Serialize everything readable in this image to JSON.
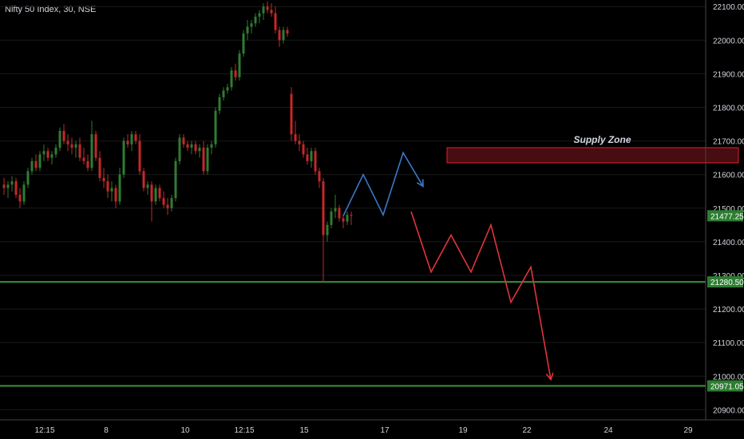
{
  "chart_data": {
    "type": "candlestick",
    "symbol_line": "Nifty 50 Index, 30, NSE",
    "annotation": "Supply Zone",
    "y_ticks": [
      22100,
      22000,
      21900,
      21800,
      21700,
      21600,
      21500,
      21400,
      21300,
      21200,
      21100,
      21000,
      20900
    ],
    "y_tick_labels": [
      "22100.00",
      "22000.00",
      "21900.00",
      "21800.00",
      "21700.00",
      "21600.00",
      "21500.00",
      "21400.00",
      "21300.00",
      "21200.00",
      "21100.00",
      "21000.00",
      "20900.00"
    ],
    "x_labels": [
      "12:15",
      "8",
      "10",
      "12:15",
      "15",
      "17",
      "19",
      "22",
      "24",
      "29"
    ],
    "ylim": [
      20870,
      22110
    ],
    "current_price": {
      "value": 21477.25,
      "label": "21477.25"
    },
    "horizontal_levels": [
      {
        "value": 21280.5,
        "label": "21280.50",
        "color": "#3a8a3a"
      },
      {
        "value": 20971.05,
        "label": "20971.05",
        "color": "#3a8a3a"
      }
    ],
    "supply_zone": {
      "x_start": 112,
      "x_end": 185,
      "low": 21635,
      "high": 21680
    },
    "candles": [
      [
        1,
        21570,
        21590,
        21540,
        21560
      ],
      [
        2,
        21560,
        21580,
        21530,
        21570
      ],
      [
        3,
        21570,
        21595,
        21550,
        21580
      ],
      [
        4,
        21580,
        21590,
        21530,
        21540
      ],
      [
        5,
        21540,
        21560,
        21500,
        21520
      ],
      [
        6,
        21520,
        21580,
        21510,
        21570
      ],
      [
        7,
        21570,
        21620,
        21560,
        21610
      ],
      [
        8,
        21610,
        21650,
        21600,
        21640
      ],
      [
        9,
        21640,
        21660,
        21610,
        21620
      ],
      [
        10,
        21620,
        21670,
        21610,
        21660
      ],
      [
        11,
        21660,
        21690,
        21640,
        21670
      ],
      [
        12,
        21670,
        21680,
        21640,
        21650
      ],
      [
        13,
        21650,
        21670,
        21630,
        21660
      ],
      [
        14,
        21660,
        21690,
        21650,
        21680
      ],
      [
        15,
        21680,
        21740,
        21670,
        21730
      ],
      [
        16,
        21730,
        21750,
        21690,
        21700
      ],
      [
        17,
        21700,
        21720,
        21670,
        21690
      ],
      [
        18,
        21690,
        21710,
        21660,
        21680
      ],
      [
        19,
        21680,
        21700,
        21650,
        21690
      ],
      [
        20,
        21690,
        21710,
        21640,
        21650
      ],
      [
        21,
        21650,
        21680,
        21630,
        21640
      ],
      [
        22,
        21640,
        21660,
        21610,
        21620
      ],
      [
        23,
        21620,
        21760,
        21610,
        21720
      ],
      [
        24,
        21720,
        21730,
        21640,
        21650
      ],
      [
        25,
        21650,
        21670,
        21580,
        21590
      ],
      [
        26,
        21590,
        21620,
        21560,
        21580
      ],
      [
        27,
        21580,
        21600,
        21530,
        21550
      ],
      [
        28,
        21550,
        21580,
        21520,
        21560
      ],
      [
        29,
        21560,
        21570,
        21500,
        21520
      ],
      [
        30,
        21520,
        21620,
        21510,
        21600
      ],
      [
        31,
        21600,
        21710,
        21590,
        21700
      ],
      [
        32,
        21700,
        21720,
        21680,
        21690
      ],
      [
        33,
        21690,
        21730,
        21670,
        21720
      ],
      [
        34,
        21720,
        21730,
        21690,
        21700
      ],
      [
        35,
        21700,
        21720,
        21600,
        21610
      ],
      [
        36,
        21610,
        21620,
        21550,
        21560
      ],
      [
        37,
        21560,
        21580,
        21540,
        21570
      ],
      [
        38,
        21570,
        21580,
        21460,
        21520
      ],
      [
        39,
        21520,
        21570,
        21510,
        21560
      ],
      [
        40,
        21560,
        21570,
        21520,
        21530
      ],
      [
        41,
        21530,
        21550,
        21500,
        21510
      ],
      [
        42,
        21510,
        21530,
        21480,
        21500
      ],
      [
        43,
        21500,
        21540,
        21490,
        21530
      ],
      [
        44,
        21530,
        21650,
        21520,
        21640
      ],
      [
        45,
        21640,
        21720,
        21630,
        21710
      ],
      [
        46,
        21710,
        21720,
        21680,
        21690
      ],
      [
        47,
        21690,
        21700,
        21670,
        21680
      ],
      [
        48,
        21680,
        21700,
        21660,
        21690
      ],
      [
        49,
        21690,
        21700,
        21660,
        21670
      ],
      [
        50,
        21670,
        21690,
        21650,
        21680
      ],
      [
        51,
        21680,
        21700,
        21600,
        21610
      ],
      [
        52,
        21610,
        21690,
        21600,
        21680
      ],
      [
        53,
        21680,
        21700,
        21660,
        21690
      ],
      [
        54,
        21690,
        21800,
        21680,
        21790
      ],
      [
        55,
        21790,
        21840,
        21780,
        21830
      ],
      [
        56,
        21830,
        21860,
        21820,
        21850
      ],
      [
        57,
        21850,
        21870,
        21840,
        21860
      ],
      [
        58,
        21860,
        21920,
        21850,
        21910
      ],
      [
        59,
        21910,
        21930,
        21880,
        21890
      ],
      [
        60,
        21890,
        21970,
        21880,
        21960
      ],
      [
        61,
        21960,
        22030,
        21950,
        22020
      ],
      [
        62,
        22020,
        22060,
        22000,
        22040
      ],
      [
        63,
        22040,
        22060,
        22020,
        22050
      ],
      [
        64,
        22050,
        22080,
        22040,
        22070
      ],
      [
        65,
        22070,
        22090,
        22050,
        22080
      ],
      [
        66,
        22080,
        22110,
        22060,
        22100
      ],
      [
        67,
        22100,
        22115,
        22080,
        22090
      ],
      [
        68,
        22090,
        22110,
        22070,
        22080
      ],
      [
        69,
        22080,
        22100,
        22020,
        22030
      ],
      [
        70,
        22030,
        22040,
        21980,
        22000
      ],
      [
        71,
        22000,
        22040,
        21990,
        22030
      ],
      [
        72,
        22030,
        22040,
        22010,
        22020
      ],
      [
        73,
        21840,
        21860,
        21700,
        21720
      ],
      [
        74,
        21720,
        21760,
        21690,
        21700
      ],
      [
        75,
        21700,
        21720,
        21670,
        21690
      ],
      [
        76,
        21690,
        21700,
        21650,
        21660
      ],
      [
        77,
        21660,
        21680,
        21630,
        21640
      ],
      [
        78,
        21640,
        21680,
        21620,
        21670
      ],
      [
        79,
        21670,
        21680,
        21600,
        21610
      ],
      [
        80,
        21610,
        21620,
        21560,
        21580
      ],
      [
        81,
        21580,
        21590,
        21280,
        21420
      ],
      [
        82,
        21420,
        21460,
        21400,
        21450
      ],
      [
        83,
        21450,
        21500,
        21440,
        21490
      ],
      [
        84,
        21490,
        21540,
        21470,
        21500
      ],
      [
        85,
        21500,
        21510,
        21460,
        21470
      ],
      [
        86,
        21470,
        21480,
        21440,
        21460
      ],
      [
        87,
        21460,
        21490,
        21450,
        21480
      ],
      [
        88,
        21480,
        21490,
        21450,
        21477.25
      ]
    ],
    "projection_blue": [
      [
        86,
        21477
      ],
      [
        91,
        21600
      ],
      [
        96,
        21480
      ],
      [
        101,
        21665
      ],
      [
        106,
        21565
      ]
    ],
    "projection_red": [
      [
        103,
        21490
      ],
      [
        108,
        21310
      ],
      [
        113,
        21420
      ],
      [
        118,
        21310
      ],
      [
        123,
        21450
      ],
      [
        128,
        21220
      ],
      [
        133,
        21325
      ],
      [
        138,
        20990
      ]
    ]
  },
  "colors": {
    "background": "#000000",
    "grid": "#1a1a1a",
    "bull": "#2e7d32",
    "bear": "#c62828",
    "price_tag": "#2e7d32",
    "zone_fill": "#5a1016",
    "zone_stroke": "#e0242e",
    "blue_path": "#3a78c8",
    "red_path": "#e0343c",
    "text": "#d1d4dc"
  }
}
